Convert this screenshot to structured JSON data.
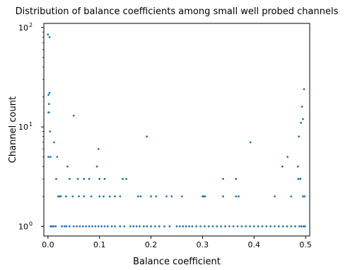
{
  "chart_data": {
    "type": "scatter",
    "title": "Distribution of balance coefficients among small well probed channels",
    "xlabel": "Balance coefficient",
    "ylabel": "Channel count",
    "xlim": [
      -0.008,
      0.508
    ],
    "ylim": [
      0.8,
      110
    ],
    "yscale": "log",
    "grid": false,
    "x_ticks": [
      {
        "value": 0.0,
        "label": "0.0"
      },
      {
        "value": 0.1,
        "label": "0.1"
      },
      {
        "value": 0.2,
        "label": "0.2"
      },
      {
        "value": 0.3,
        "label": "0.3"
      },
      {
        "value": 0.4,
        "label": "0.4"
      },
      {
        "value": 0.5,
        "label": "0.5"
      }
    ],
    "y_ticks": [
      {
        "value": 1,
        "base": "10",
        "exp": "0"
      },
      {
        "value": 10,
        "base": "10",
        "exp": "1"
      },
      {
        "value": 100,
        "base": "10",
        "exp": "2"
      }
    ],
    "marker_color": "#1f77b4",
    "points": [
      [
        0.0,
        85
      ],
      [
        0.003,
        80
      ],
      [
        0.001,
        21
      ],
      [
        0.003,
        22
      ],
      [
        0.002,
        14
      ],
      [
        0.001,
        14
      ],
      [
        0.002,
        17
      ],
      [
        0.004,
        9
      ],
      [
        0.001,
        5
      ],
      [
        0.005,
        5
      ],
      [
        0.012,
        7
      ],
      [
        0.018,
        5
      ],
      [
        0.05,
        13
      ],
      [
        0.016,
        3
      ],
      [
        0.038,
        4
      ],
      [
        0.042,
        3
      ],
      [
        0.058,
        3
      ],
      [
        0.07,
        3
      ],
      [
        0.08,
        3
      ],
      [
        0.095,
        4
      ],
      [
        0.098,
        6
      ],
      [
        0.1,
        3
      ],
      [
        0.11,
        3
      ],
      [
        0.145,
        3
      ],
      [
        0.152,
        3
      ],
      [
        0.192,
        8
      ],
      [
        0.34,
        3
      ],
      [
        0.365,
        3
      ],
      [
        0.393,
        7
      ],
      [
        0.455,
        4
      ],
      [
        0.465,
        5
      ],
      [
        0.485,
        4
      ],
      [
        0.486,
        3
      ],
      [
        0.487,
        8
      ],
      [
        0.49,
        3
      ],
      [
        0.491,
        11
      ],
      [
        0.493,
        16
      ],
      [
        0.495,
        12
      ],
      [
        0.497,
        24
      ],
      [
        0.02,
        2
      ],
      [
        0.022,
        2
      ],
      [
        0.025,
        2
      ],
      [
        0.035,
        2
      ],
      [
        0.048,
        2
      ],
      [
        0.06,
        2
      ],
      [
        0.07,
        2
      ],
      [
        0.084,
        2
      ],
      [
        0.1,
        2
      ],
      [
        0.108,
        2
      ],
      [
        0.12,
        2
      ],
      [
        0.13,
        2
      ],
      [
        0.14,
        2
      ],
      [
        0.175,
        2
      ],
      [
        0.18,
        2
      ],
      [
        0.2,
        2
      ],
      [
        0.21,
        2
      ],
      [
        0.23,
        2
      ],
      [
        0.24,
        2
      ],
      [
        0.26,
        2
      ],
      [
        0.3,
        2
      ],
      [
        0.302,
        2
      ],
      [
        0.305,
        2
      ],
      [
        0.34,
        2
      ],
      [
        0.365,
        2
      ],
      [
        0.37,
        2
      ],
      [
        0.44,
        2
      ],
      [
        0.472,
        2
      ],
      [
        0.495,
        2
      ],
      [
        0.498,
        2
      ],
      [
        0.005,
        1
      ],
      [
        0.008,
        1
      ],
      [
        0.011,
        1
      ],
      [
        0.015,
        1
      ],
      [
        0.027,
        1
      ],
      [
        0.032,
        1
      ],
      [
        0.036,
        1
      ],
      [
        0.042,
        1
      ],
      [
        0.05,
        1
      ],
      [
        0.056,
        1
      ],
      [
        0.062,
        1
      ],
      [
        0.068,
        1
      ],
      [
        0.074,
        1
      ],
      [
        0.08,
        1
      ],
      [
        0.086,
        1
      ],
      [
        0.092,
        1
      ],
      [
        0.098,
        1
      ],
      [
        0.104,
        1
      ],
      [
        0.11,
        1
      ],
      [
        0.116,
        1
      ],
      [
        0.124,
        1
      ],
      [
        0.13,
        1
      ],
      [
        0.14,
        1
      ],
      [
        0.148,
        1
      ],
      [
        0.16,
        1
      ],
      [
        0.166,
        1
      ],
      [
        0.172,
        1
      ],
      [
        0.178,
        1
      ],
      [
        0.186,
        1
      ],
      [
        0.192,
        1
      ],
      [
        0.2,
        1
      ],
      [
        0.208,
        1
      ],
      [
        0.216,
        1
      ],
      [
        0.226,
        1
      ],
      [
        0.236,
        1
      ],
      [
        0.25,
        1
      ],
      [
        0.256,
        1
      ],
      [
        0.262,
        1
      ],
      [
        0.268,
        1
      ],
      [
        0.274,
        1
      ],
      [
        0.28,
        1
      ],
      [
        0.288,
        1
      ],
      [
        0.296,
        1
      ],
      [
        0.304,
        1
      ],
      [
        0.312,
        1
      ],
      [
        0.32,
        1
      ],
      [
        0.328,
        1
      ],
      [
        0.336,
        1
      ],
      [
        0.344,
        1
      ],
      [
        0.352,
        1
      ],
      [
        0.36,
        1
      ],
      [
        0.368,
        1
      ],
      [
        0.376,
        1
      ],
      [
        0.384,
        1
      ],
      [
        0.392,
        1
      ],
      [
        0.4,
        1
      ],
      [
        0.408,
        1
      ],
      [
        0.416,
        1
      ],
      [
        0.424,
        1
      ],
      [
        0.432,
        1
      ],
      [
        0.44,
        1
      ],
      [
        0.448,
        1
      ],
      [
        0.456,
        1
      ],
      [
        0.464,
        1
      ],
      [
        0.472,
        1
      ],
      [
        0.48,
        1
      ],
      [
        0.488,
        1
      ],
      [
        0.492,
        1
      ],
      [
        0.496,
        1
      ],
      [
        0.499,
        1
      ]
    ]
  }
}
